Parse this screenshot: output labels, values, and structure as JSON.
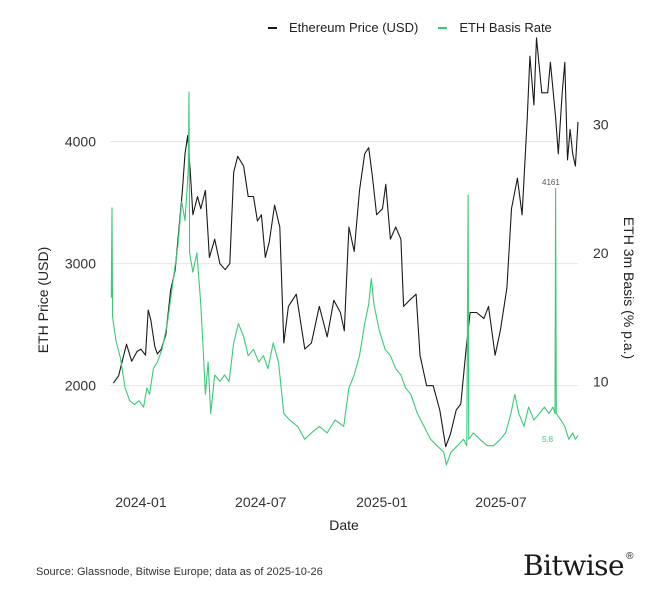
{
  "legend": [
    {
      "label": "Ethereum Price (USD)",
      "color": "#1a1a1a"
    },
    {
      "label": "ETH Basis Rate",
      "color": "#3cc97a"
    }
  ],
  "footer": {
    "source": "Source: Glassnode, Bitwise Europe; data as of 2025-10-26",
    "brand": "Bitwise"
  },
  "chart_data": {
    "type": "line",
    "xlabel": "Date",
    "ylabel_left": "ETH Price (USD)",
    "ylabel_right": "ETH 3m Basis (% p.a.)",
    "x_range": [
      "2023-11-15",
      "2025-10-26"
    ],
    "x_ticks": [
      {
        "date": "2024-01-01",
        "label": "2024-01"
      },
      {
        "date": "2024-07-01",
        "label": "2024-07"
      },
      {
        "date": "2025-01-01",
        "label": "2025-01"
      },
      {
        "date": "2025-07-01",
        "label": "2025-07"
      }
    ],
    "y_left_ticks": [
      2000,
      3000,
      4000
    ],
    "y_left_range": [
      1350,
      4300
    ],
    "y_right_ticks": [
      10,
      20,
      30
    ],
    "y_right_range": [
      3.5,
      31.5
    ],
    "grid": true,
    "legend_position": "top",
    "end_labels": {
      "price": "4161",
      "basis": "5.8"
    },
    "series": [
      {
        "name": "Ethereum Price (USD)",
        "axis": "left",
        "color": "#1a1a1a",
        "points": [
          [
            "2023-11-20",
            2020
          ],
          [
            "2023-11-28",
            2080
          ],
          [
            "2023-12-04",
            2210
          ],
          [
            "2023-12-10",
            2340
          ],
          [
            "2023-12-18",
            2200
          ],
          [
            "2023-12-26",
            2280
          ],
          [
            "2024-01-01",
            2300
          ],
          [
            "2024-01-08",
            2250
          ],
          [
            "2024-01-12",
            2620
          ],
          [
            "2024-01-16",
            2540
          ],
          [
            "2024-01-22",
            2320
          ],
          [
            "2024-01-26",
            2260
          ],
          [
            "2024-02-01",
            2300
          ],
          [
            "2024-02-08",
            2420
          ],
          [
            "2024-02-15",
            2780
          ],
          [
            "2024-02-22",
            2950
          ],
          [
            "2024-02-28",
            3300
          ],
          [
            "2024-03-04",
            3600
          ],
          [
            "2024-03-08",
            3900
          ],
          [
            "2024-03-12",
            4050
          ],
          [
            "2024-03-16",
            3750
          ],
          [
            "2024-03-20",
            3400
          ],
          [
            "2024-03-27",
            3550
          ],
          [
            "2024-04-01",
            3450
          ],
          [
            "2024-04-08",
            3600
          ],
          [
            "2024-04-14",
            3050
          ],
          [
            "2024-04-22",
            3200
          ],
          [
            "2024-04-30",
            3000
          ],
          [
            "2024-05-08",
            2950
          ],
          [
            "2024-05-15",
            3000
          ],
          [
            "2024-05-21",
            3750
          ],
          [
            "2024-05-27",
            3880
          ],
          [
            "2024-06-05",
            3800
          ],
          [
            "2024-06-12",
            3550
          ],
          [
            "2024-06-20",
            3550
          ],
          [
            "2024-06-26",
            3350
          ],
          [
            "2024-07-02",
            3400
          ],
          [
            "2024-07-08",
            3050
          ],
          [
            "2024-07-14",
            3180
          ],
          [
            "2024-07-22",
            3480
          ],
          [
            "2024-07-30",
            3300
          ],
          [
            "2024-08-05",
            2350
          ],
          [
            "2024-08-12",
            2650
          ],
          [
            "2024-08-24",
            2750
          ],
          [
            "2024-09-06",
            2300
          ],
          [
            "2024-09-16",
            2350
          ],
          [
            "2024-09-28",
            2650
          ],
          [
            "2024-10-10",
            2400
          ],
          [
            "2024-10-20",
            2700
          ],
          [
            "2024-10-30",
            2600
          ],
          [
            "2024-11-05",
            2450
          ],
          [
            "2024-11-12",
            3300
          ],
          [
            "2024-11-20",
            3100
          ],
          [
            "2024-11-28",
            3600
          ],
          [
            "2024-12-06",
            3900
          ],
          [
            "2024-12-12",
            3950
          ],
          [
            "2024-12-18",
            3700
          ],
          [
            "2024-12-24",
            3400
          ],
          [
            "2025-01-02",
            3450
          ],
          [
            "2025-01-07",
            3650
          ],
          [
            "2025-01-14",
            3200
          ],
          [
            "2025-01-22",
            3300
          ],
          [
            "2025-01-30",
            3200
          ],
          [
            "2025-02-03",
            2650
          ],
          [
            "2025-02-12",
            2700
          ],
          [
            "2025-02-22",
            2750
          ],
          [
            "2025-02-28",
            2250
          ],
          [
            "2025-03-10",
            2000
          ],
          [
            "2025-03-20",
            2000
          ],
          [
            "2025-03-30",
            1800
          ],
          [
            "2025-04-08",
            1500
          ],
          [
            "2025-04-15",
            1600
          ],
          [
            "2025-04-24",
            1800
          ],
          [
            "2025-05-01",
            1850
          ],
          [
            "2025-05-09",
            2300
          ],
          [
            "2025-05-15",
            2600
          ],
          [
            "2025-05-25",
            2600
          ],
          [
            "2025-06-05",
            2550
          ],
          [
            "2025-06-12",
            2650
          ],
          [
            "2025-06-22",
            2250
          ],
          [
            "2025-06-30",
            2450
          ],
          [
            "2025-07-10",
            2800
          ],
          [
            "2025-07-17",
            3450
          ],
          [
            "2025-07-26",
            3700
          ],
          [
            "2025-08-02",
            3400
          ],
          [
            "2025-08-10",
            4200
          ],
          [
            "2025-08-14",
            4700
          ],
          [
            "2025-08-20",
            4300
          ],
          [
            "2025-08-24",
            4850
          ],
          [
            "2025-09-01",
            4400
          ],
          [
            "2025-09-10",
            4400
          ],
          [
            "2025-09-14",
            4650
          ],
          [
            "2025-09-22",
            4200
          ],
          [
            "2025-09-26",
            3900
          ],
          [
            "2025-10-02",
            4400
          ],
          [
            "2025-10-06",
            4650
          ],
          [
            "2025-10-10",
            3850
          ],
          [
            "2025-10-14",
            4100
          ],
          [
            "2025-10-18",
            3900
          ],
          [
            "2025-10-22",
            3800
          ],
          [
            "2025-10-26",
            4161
          ]
        ]
      },
      {
        "name": "ETH Basis Rate",
        "axis": "right",
        "color": "#3cc97a",
        "points": [
          [
            "2023-11-17",
            16.5
          ],
          [
            "2023-11-18",
            23.5
          ],
          [
            "2023-11-19",
            15.0
          ],
          [
            "2023-11-24",
            13.2
          ],
          [
            "2023-12-01",
            11.8
          ],
          [
            "2023-12-08",
            9.5
          ],
          [
            "2023-12-15",
            8.5
          ],
          [
            "2023-12-22",
            8.2
          ],
          [
            "2023-12-29",
            8.5
          ],
          [
            "2024-01-05",
            8.0
          ],
          [
            "2024-01-10",
            9.5
          ],
          [
            "2024-01-14",
            9.0
          ],
          [
            "2024-01-20",
            11.0
          ],
          [
            "2024-01-26",
            11.5
          ],
          [
            "2024-02-02",
            12.5
          ],
          [
            "2024-02-10",
            14.5
          ],
          [
            "2024-02-18",
            17.5
          ],
          [
            "2024-02-26",
            20.5
          ],
          [
            "2024-03-03",
            24.0
          ],
          [
            "2024-03-08",
            22.5
          ],
          [
            "2024-03-13",
            26.5
          ],
          [
            "2024-03-14",
            32.5
          ],
          [
            "2024-03-15",
            20.0
          ],
          [
            "2024-03-20",
            18.5
          ],
          [
            "2024-03-26",
            20.0
          ],
          [
            "2024-04-01",
            16.0
          ],
          [
            "2024-04-05",
            12.0
          ],
          [
            "2024-04-08",
            9.0
          ],
          [
            "2024-04-12",
            11.5
          ],
          [
            "2024-04-16",
            7.5
          ],
          [
            "2024-04-22",
            10.5
          ],
          [
            "2024-04-30",
            10.0
          ],
          [
            "2024-05-07",
            10.5
          ],
          [
            "2024-05-14",
            10.0
          ],
          [
            "2024-05-21",
            13.0
          ],
          [
            "2024-05-28",
            14.5
          ],
          [
            "2024-06-05",
            13.5
          ],
          [
            "2024-06-12",
            12.0
          ],
          [
            "2024-06-20",
            12.5
          ],
          [
            "2024-06-28",
            11.5
          ],
          [
            "2024-07-05",
            12.0
          ],
          [
            "2024-07-12",
            11.0
          ],
          [
            "2024-07-20",
            13.0
          ],
          [
            "2024-07-28",
            11.5
          ],
          [
            "2024-08-05",
            7.5
          ],
          [
            "2024-08-14",
            7.0
          ],
          [
            "2024-08-26",
            6.5
          ],
          [
            "2024-09-06",
            5.5
          ],
          [
            "2024-09-16",
            6.0
          ],
          [
            "2024-09-28",
            6.5
          ],
          [
            "2024-10-10",
            6.0
          ],
          [
            "2024-10-22",
            7.0
          ],
          [
            "2024-11-04",
            6.5
          ],
          [
            "2024-11-12",
            9.5
          ],
          [
            "2024-11-20",
            10.5
          ],
          [
            "2024-11-28",
            12.0
          ],
          [
            "2024-12-06",
            14.5
          ],
          [
            "2024-12-12",
            16.0
          ],
          [
            "2024-12-16",
            18.0
          ],
          [
            "2024-12-20",
            16.0
          ],
          [
            "2024-12-28",
            14.0
          ],
          [
            "2025-01-06",
            12.5
          ],
          [
            "2025-01-14",
            12.0
          ],
          [
            "2025-01-22",
            11.0
          ],
          [
            "2025-01-30",
            10.5
          ],
          [
            "2025-02-06",
            9.5
          ],
          [
            "2025-02-14",
            9.0
          ],
          [
            "2025-02-24",
            7.5
          ],
          [
            "2025-03-06",
            6.5
          ],
          [
            "2025-03-16",
            5.5
          ],
          [
            "2025-03-26",
            5.0
          ],
          [
            "2025-04-05",
            4.5
          ],
          [
            "2025-04-09",
            3.5
          ],
          [
            "2025-04-16",
            4.5
          ],
          [
            "2025-04-26",
            5.0
          ],
          [
            "2025-05-05",
            5.5
          ],
          [
            "2025-05-10",
            5.0
          ],
          [
            "2025-05-12",
            24.5
          ],
          [
            "2025-05-13",
            5.5
          ],
          [
            "2025-05-20",
            6.0
          ],
          [
            "2025-05-30",
            5.5
          ],
          [
            "2025-06-10",
            5.0
          ],
          [
            "2025-06-20",
            5.0
          ],
          [
            "2025-06-30",
            5.5
          ],
          [
            "2025-07-08",
            6.0
          ],
          [
            "2025-07-16",
            7.5
          ],
          [
            "2025-07-22",
            9.0
          ],
          [
            "2025-07-28",
            7.5
          ],
          [
            "2025-08-05",
            6.5
          ],
          [
            "2025-08-12",
            8.0
          ],
          [
            "2025-08-20",
            7.0
          ],
          [
            "2025-08-28",
            7.5
          ],
          [
            "2025-09-05",
            8.0
          ],
          [
            "2025-09-12",
            7.5
          ],
          [
            "2025-09-18",
            8.0
          ],
          [
            "2025-09-21",
            7.5
          ],
          [
            "2025-09-22",
            25.0
          ],
          [
            "2025-09-23",
            7.5
          ],
          [
            "2025-09-30",
            7.0
          ],
          [
            "2025-10-06",
            6.5
          ],
          [
            "2025-10-12",
            5.5
          ],
          [
            "2025-10-18",
            6.0
          ],
          [
            "2025-10-22",
            5.5
          ],
          [
            "2025-10-26",
            5.8
          ]
        ]
      }
    ]
  }
}
